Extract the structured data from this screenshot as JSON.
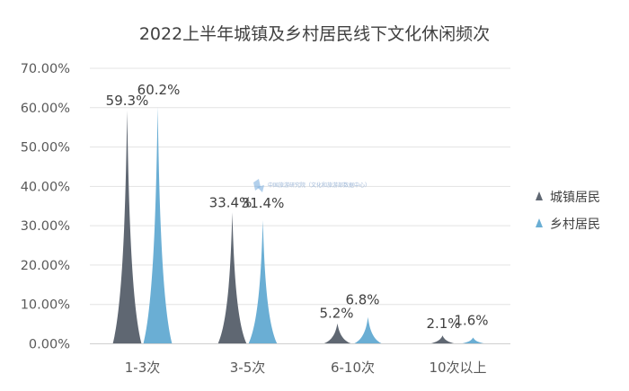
{
  "chart_data": {
    "type": "bar",
    "title": "2022上半年城镇及乡村居民线下文化休闲频次",
    "xlabel": "",
    "ylabel": "",
    "categories": [
      "1-3次",
      "3-5次",
      "6-10次",
      "10次以上"
    ],
    "series": [
      {
        "name": "城镇居民",
        "values": [
          59.3,
          33.4,
          5.2,
          2.1
        ],
        "labels": [
          "59.3%",
          "33.4%",
          "5.2%",
          "2.1%"
        ],
        "color": "#5f6772"
      },
      {
        "name": "乡村居民",
        "values": [
          60.2,
          31.4,
          6.8,
          1.6
        ],
        "labels": [
          "60.2%",
          "31.4%",
          "6.8%",
          "1.6%"
        ],
        "color": "#6aaed4"
      }
    ],
    "ylim": [
      0,
      70
    ],
    "yticks": [
      0,
      10,
      20,
      30,
      40,
      50,
      60,
      70
    ],
    "ytick_labels": [
      "0.00%",
      "10.00%",
      "20.00%",
      "30.00%",
      "40.00%",
      "50.00%",
      "60.00%",
      "70.00%"
    ],
    "grid": true,
    "legend_position": "right",
    "mark_shape": "cone",
    "watermark": "中国旅游研究院（文化和旅游部数据中心）"
  }
}
